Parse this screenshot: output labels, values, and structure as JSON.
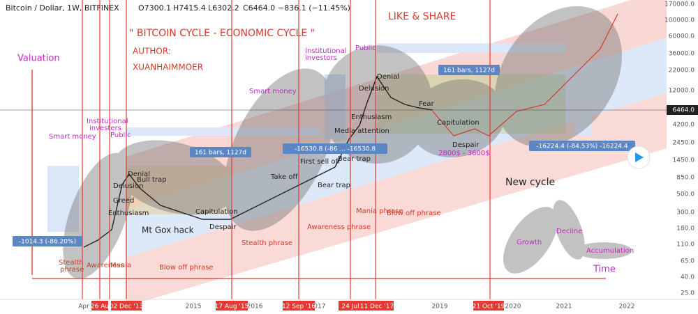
{
  "header": {
    "symbol": "Bitcoin / Dollar, 1W, BITFINEX",
    "open": "O7300.1",
    "high": "H7415.4",
    "low": "L6302.2",
    "close": "C6464.0",
    "change": "−836.1 (−11.45%)"
  },
  "annotations": {
    "title": "\" BITCOIN CYCLE - ECONOMIC CYCLE \"",
    "author_label": "AUTHOR:",
    "author": "XUANHAIMMOER",
    "like_share": "LIKE & SHARE",
    "valuation": "Valuation",
    "time": "Time",
    "new_cycle": "New cycle",
    "mt_gox": "Mt Gox hack"
  },
  "labels": [
    "Smart money",
    "Institutional",
    "investers",
    "Public",
    "Smart money",
    "Institutional",
    "investors",
    "Public",
    "2800$ - 3600$",
    "Growth",
    "Decline",
    "Accumulation",
    "Stealth",
    "phrase",
    "Awareness",
    "Mania",
    "Blow off phrase",
    "Stealth phrase",
    "Awareness phrase",
    "Mania phrase",
    "Blow off phrase",
    "Delusion",
    "Greed",
    "Enthusiasm",
    "Capitulation",
    "Despair",
    "Take off",
    "First sell off",
    "Bear trap",
    "Bear trap",
    "Enthusiasm",
    "Media attention",
    "Delusion",
    "Denial",
    "Fear",
    "Capitulation",
    "Despair",
    "Denial",
    "Bull trap"
  ],
  "badges": [
    "161 bars, 1127d",
    "161 bars, 1127d",
    "-16530.8 (-86 ... -16530.8",
    "-16224.4 (-84.53%) -16224.4",
    "-1014.3 (-86.20%)"
  ],
  "price_axis": [
    "170000.0",
    "100000.0",
    "60000.0",
    "36000.0",
    "22000.0",
    "12000.0",
    "6464.0",
    "4200.0",
    "2450.0",
    "1450.0",
    "850.0",
    "500.0",
    "300.0",
    "180.0",
    "110.0",
    "65.0",
    "40.0",
    "25.0"
  ],
  "time_axis": [
    "Apr",
    "2015",
    "2016",
    "2017",
    "2019",
    "2020",
    "2021",
    "2022"
  ],
  "date_markers": [
    "26 Au",
    "02 Dec '13",
    "17 Aug '15",
    "12 Sep '16",
    "24 Jul",
    "11 Dec '17",
    "21 Oct '19"
  ]
}
